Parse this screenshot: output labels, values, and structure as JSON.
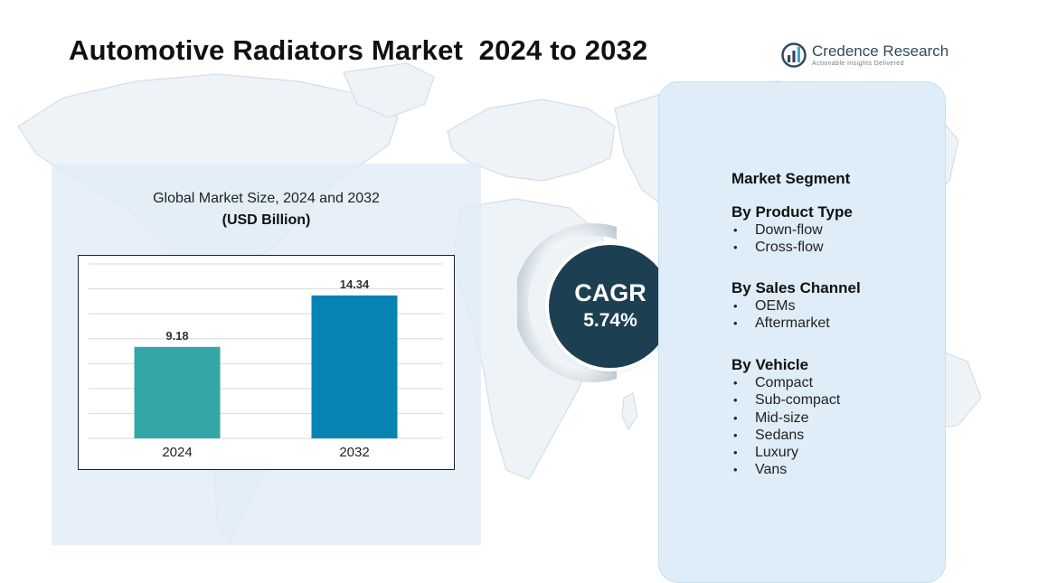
{
  "title": "Automotive Radiators Market  2024 to 2032",
  "logo": {
    "name": "Credence Research",
    "tagline": "Actionable Insights Delivered",
    "mark_color": "#2f4a5e",
    "accent_color": "#4a9fd0"
  },
  "chart_data": {
    "type": "bar",
    "title": "Global Market Size, 2024 and 2032",
    "subtitle": "(USD Billion)",
    "categories": [
      "2024",
      "2032"
    ],
    "values": [
      9.18,
      14.34
    ],
    "data_labels": [
      "9.18",
      "14.34"
    ],
    "colors": [
      "#35a6a8",
      "#0783b4"
    ],
    "ylim": [
      0,
      17.5
    ],
    "grid": true,
    "legend": "none"
  },
  "cagr": {
    "label": "CAGR",
    "value": "5.74%"
  },
  "segments": {
    "heading": "Market Segment",
    "groups": [
      {
        "title": "By Product Type",
        "items": [
          "Down-flow",
          "Cross-flow"
        ]
      },
      {
        "title": "By Sales Channel",
        "items": [
          "OEMs",
          "Aftermarket"
        ]
      },
      {
        "title": "By Vehicle",
        "items": [
          "Compact",
          "Sub-compact",
          "Mid-size",
          "Sedans",
          "Luxury",
          "Vans"
        ]
      }
    ]
  },
  "colors": {
    "map_fill": "#eef3f7",
    "map_stroke": "#d3dee6",
    "chart_panel": "#e0ecf7",
    "segment_panel": "#deedf7",
    "cagr_circle": "#1d3f52",
    "grid_line": "#d9d9d9"
  }
}
